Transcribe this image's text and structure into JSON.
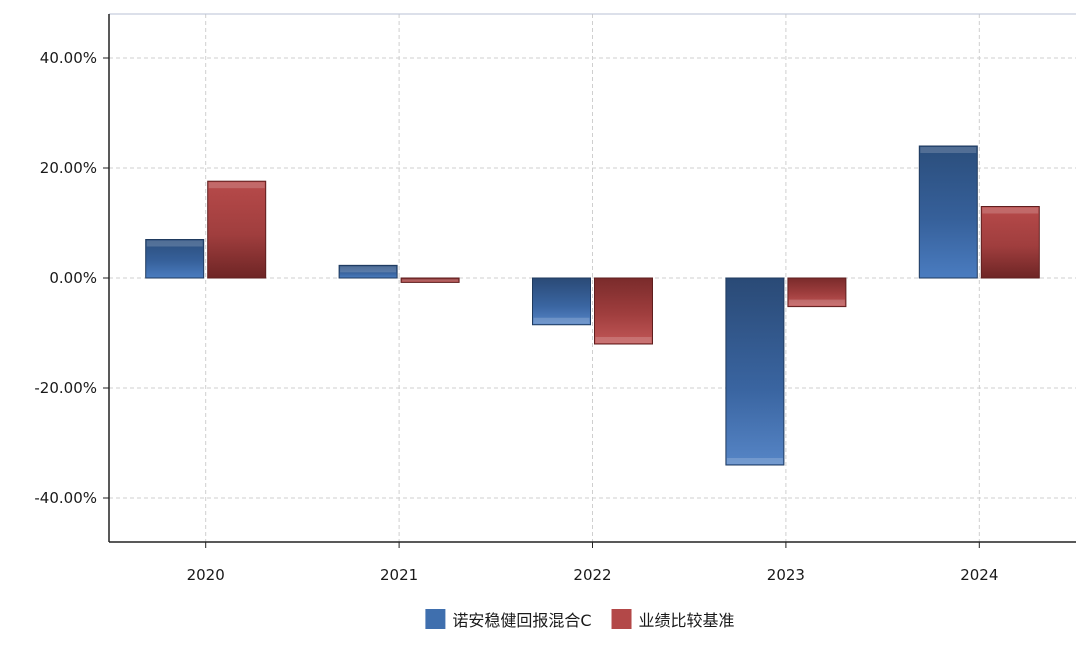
{
  "chart_data": {
    "type": "bar",
    "categories": [
      "2020",
      "2021",
      "2022",
      "2023",
      "2024"
    ],
    "series": [
      {
        "name": "诺安稳健回报混合C",
        "values": [
          7.0,
          2.3,
          -8.5,
          -34.0,
          24.0
        ],
        "color": "#3f6fae"
      },
      {
        "name": "业绩比较基准",
        "values": [
          17.6,
          -0.8,
          -12.0,
          -5.2,
          13.0
        ],
        "color": "#b34848"
      }
    ],
    "ylim": [
      -48,
      48
    ],
    "yticks": [
      -40,
      -20,
      0,
      20,
      40
    ],
    "ytick_labels": [
      "-40.00%",
      "-20.00%",
      "0.00%",
      "20.00%",
      "40.00%"
    ],
    "grid": true,
    "legend_position": "bottom-center",
    "title": "",
    "xlabel": "",
    "ylabel": ""
  }
}
